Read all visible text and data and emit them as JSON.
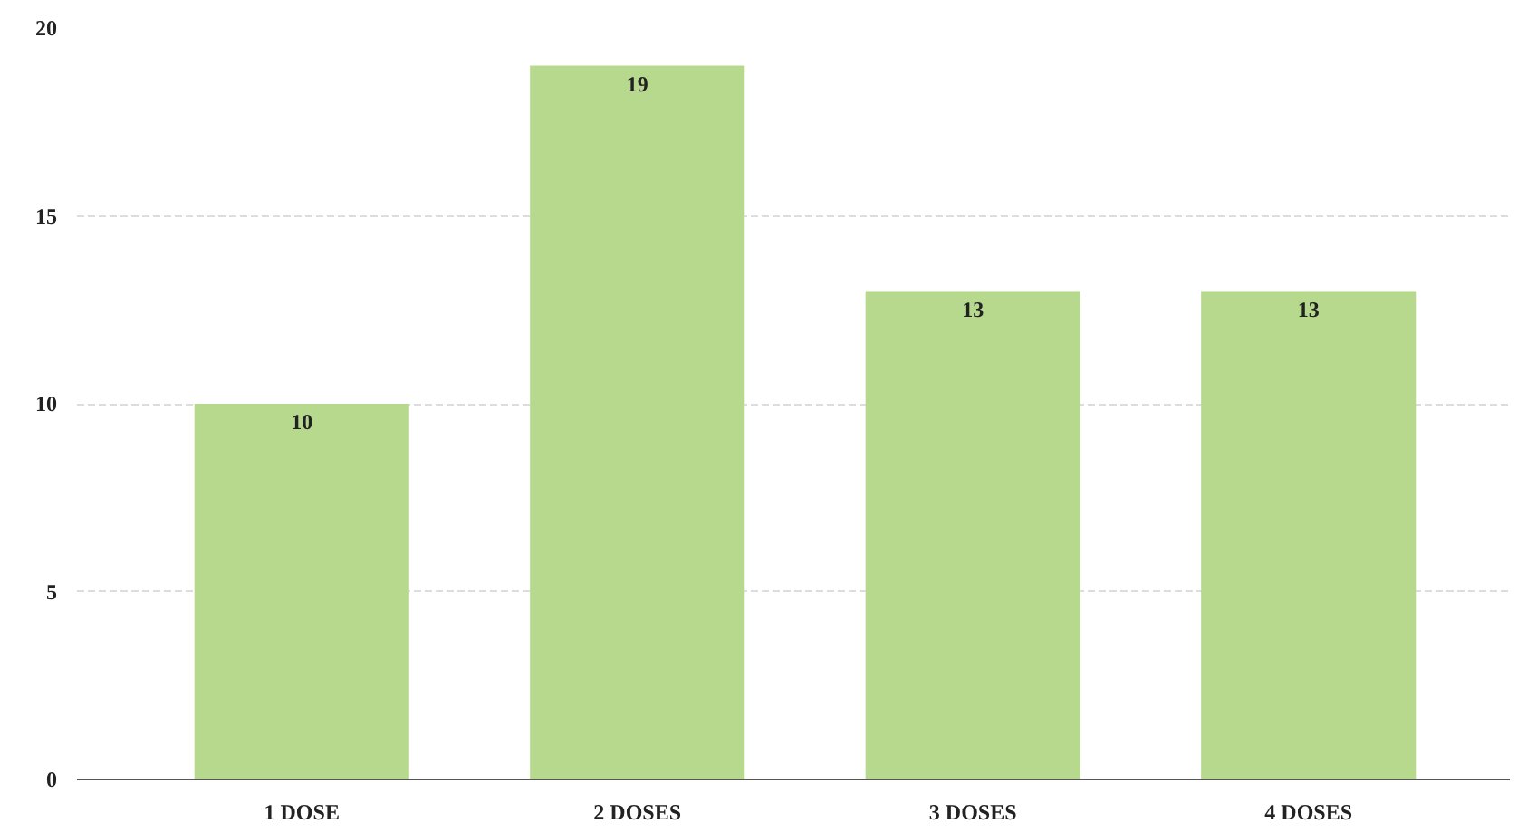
{
  "chart_data": {
    "type": "bar",
    "categories": [
      "1 DOSE",
      "2 DOSES",
      "3 DOSES",
      "4 DOSES"
    ],
    "values": [
      10,
      19,
      13,
      13
    ],
    "color": "#b7d98e",
    "ylim": [
      0,
      20
    ],
    "yticks": [
      0,
      5,
      10,
      15,
      20
    ],
    "grid": "y",
    "data_labels": true
  }
}
